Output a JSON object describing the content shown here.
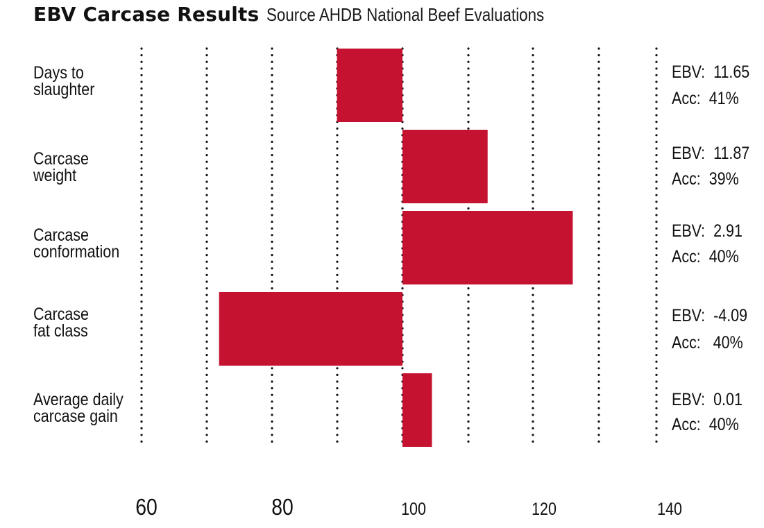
{
  "header": {
    "title": "EBV Carcase Results",
    "source": "Source AHDB National Beef Evaluations"
  },
  "chart_data": {
    "type": "bar",
    "orientation": "horizontal",
    "title": "EBV Carcase Results",
    "subtitle": "Source AHDB National Beef Evaluations",
    "xlabel": "",
    "ylabel": "",
    "xlim": [
      60,
      140
    ],
    "baseline": 100,
    "grid": true,
    "bar_color": "#c41230",
    "categories": [
      [
        "Days to",
        "slaughter"
      ],
      [
        "Carcase",
        "weight"
      ],
      [
        "Carcase",
        "conformation"
      ],
      [
        "Carcase",
        "fat class"
      ],
      [
        "Average daily",
        "carcase gain"
      ]
    ],
    "bars": [
      {
        "start": 90,
        "end": 100
      },
      {
        "start": 100,
        "end": 113
      },
      {
        "start": 100,
        "end": 126
      },
      {
        "start": 72,
        "end": 100
      },
      {
        "start": 100,
        "end": 104.5
      }
    ],
    "ebv_values": [
      "EBV:  11.65",
      "EBV:  11.87",
      "EBV:  2.91",
      "EBV:  -4.09",
      "EBV:  0.01"
    ],
    "acc_values": [
      "Acc:  41%",
      "Acc:  39%",
      "Acc:  40%",
      "Acc:   40%",
      "Acc:  40%"
    ],
    "tick_labels": [
      {
        "value": 60,
        "label": "60"
      },
      {
        "value": 80,
        "label": "80"
      },
      {
        "value": 100,
        "label": "100"
      },
      {
        "value": 120,
        "label": "120"
      },
      {
        "value": 140,
        "label": "140"
      }
    ]
  }
}
